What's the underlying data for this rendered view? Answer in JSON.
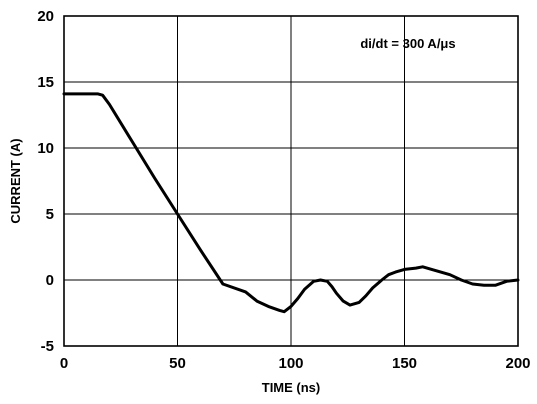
{
  "chart_data": {
    "type": "line",
    "xlabel": "TIME (ns)",
    "ylabel": "CURRENT (A)",
    "xlim": [
      0,
      200
    ],
    "ylim": [
      -5,
      20
    ],
    "xticks": [
      0,
      50,
      100,
      150,
      200
    ],
    "yticks": [
      -5,
      0,
      5,
      10,
      15,
      20
    ],
    "grid": true,
    "annotations": [
      {
        "text": "di/dt = 300 A/μs"
      }
    ],
    "series": [
      {
        "color": "#000000",
        "x": [
          0,
          5,
          10,
          15,
          17,
          20,
          30,
          40,
          50,
          60,
          70,
          80,
          85,
          90,
          95,
          97,
          100,
          103,
          106,
          110,
          113,
          116,
          118,
          120,
          123,
          126,
          130,
          133,
          136,
          140,
          143,
          146,
          150,
          155,
          158,
          162,
          166,
          170,
          175,
          180,
          185,
          190,
          195,
          200
        ],
        "y": [
          14.1,
          14.1,
          14.1,
          14.1,
          14.0,
          13.3,
          10.5,
          7.7,
          5.0,
          2.3,
          -0.3,
          -0.9,
          -1.6,
          -2.0,
          -2.3,
          -2.4,
          -2.0,
          -1.4,
          -0.7,
          -0.1,
          0.0,
          -0.1,
          -0.5,
          -1.0,
          -1.6,
          -1.9,
          -1.7,
          -1.2,
          -0.6,
          0.0,
          0.4,
          0.6,
          0.8,
          0.9,
          1.0,
          0.8,
          0.6,
          0.4,
          0.0,
          -0.3,
          -0.4,
          -0.4,
          -0.1,
          0.0
        ]
      }
    ]
  }
}
